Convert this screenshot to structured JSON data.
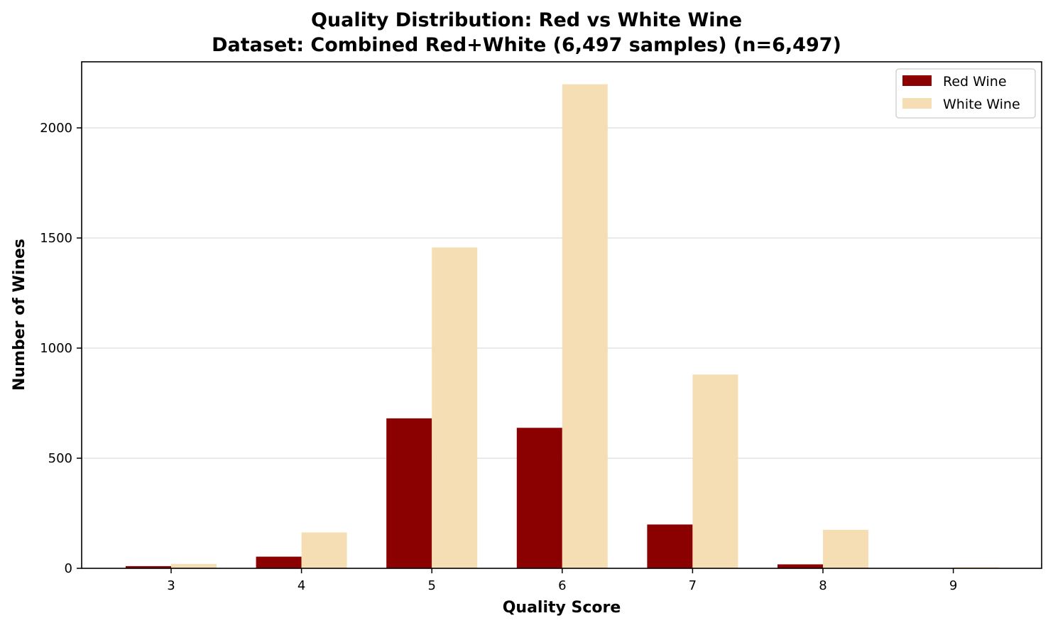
{
  "chart_data": {
    "type": "bar",
    "title": "Quality Distribution: Red vs White Wine",
    "subtitle": "Dataset: Combined Red+White (6,497 samples) (n=6,497)",
    "xlabel": "Quality Score",
    "ylabel": "Number of Wines",
    "categories": [
      "3",
      "4",
      "5",
      "6",
      "7",
      "8",
      "9"
    ],
    "series": [
      {
        "name": "Red Wine",
        "color": "#8b0000",
        "values": [
          10,
          53,
          681,
          638,
          199,
          18,
          0
        ]
      },
      {
        "name": "White Wine",
        "color": "#f5deb3",
        "values": [
          20,
          163,
          1457,
          2198,
          880,
          175,
          5
        ]
      }
    ],
    "ylim": [
      0,
      2300
    ],
    "yticks": [
      0,
      500,
      1000,
      1500,
      2000
    ],
    "grid": "horizontal",
    "legend_position": "top-right"
  }
}
